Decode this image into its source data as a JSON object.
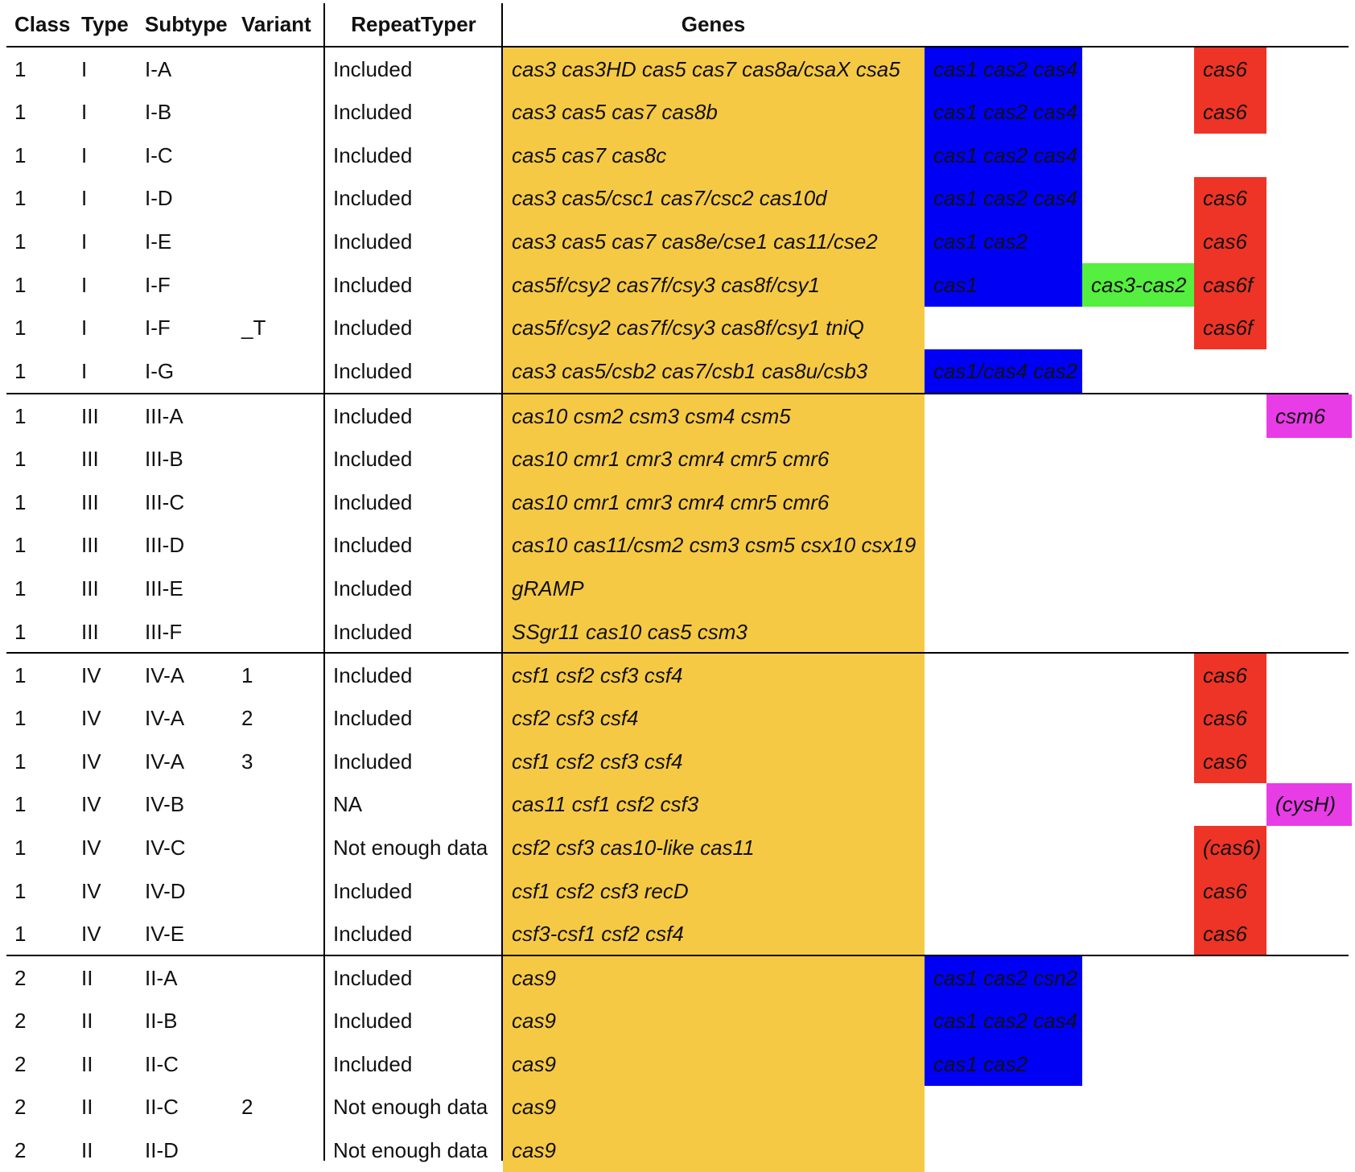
{
  "headers": {
    "class": "Class",
    "type": "Type",
    "subtype": "Subtype",
    "variant": "Variant",
    "repeat_typer": "RepeatTyper",
    "genes": "Genes"
  },
  "colors": {
    "core_genes": "#f6c945",
    "adaptation_genes": "#0000f5",
    "fusion_gene": "#55ef3f",
    "cas6_genes": "#ee3426",
    "accessory_genes": "#e83ce6"
  },
  "rows": [
    {
      "class": "1",
      "type": "I",
      "subtype": "I-A",
      "variant": "",
      "repeat_typer": "Included",
      "core": "cas3 cas3HD cas5 cas7 cas8a/csaX csa5",
      "adaptation": "cas1 cas2 cas4",
      "fusion": "",
      "cas6": "cas6",
      "accessory": ""
    },
    {
      "class": "1",
      "type": "I",
      "subtype": "I-B",
      "variant": "",
      "repeat_typer": "Included",
      "core": "cas3 cas5 cas7 cas8b",
      "adaptation": "cas1 cas2 cas4",
      "fusion": "",
      "cas6": "cas6",
      "accessory": ""
    },
    {
      "class": "1",
      "type": "I",
      "subtype": "I-C",
      "variant": "",
      "repeat_typer": "Included",
      "core": "cas5 cas7 cas8c",
      "adaptation": "cas1 cas2 cas4",
      "fusion": "",
      "cas6": "",
      "accessory": ""
    },
    {
      "class": "1",
      "type": "I",
      "subtype": "I-D",
      "variant": "",
      "repeat_typer": "Included",
      "core": "cas3 cas5/csc1 cas7/csc2 cas10d",
      "adaptation": "cas1 cas2 cas4",
      "fusion": "",
      "cas6": "cas6",
      "accessory": ""
    },
    {
      "class": "1",
      "type": "I",
      "subtype": "I-E",
      "variant": "",
      "repeat_typer": "Included",
      "core": "cas3 cas5 cas7 cas8e/cse1 cas11/cse2",
      "adaptation": "cas1 cas2",
      "fusion": "",
      "cas6": "cas6",
      "accessory": ""
    },
    {
      "class": "1",
      "type": "I",
      "subtype": "I-F",
      "variant": "",
      "repeat_typer": "Included",
      "core": "cas5f/csy2 cas7f/csy3 cas8f/csy1",
      "adaptation": "cas1",
      "fusion": "cas3-cas2",
      "cas6": "cas6f",
      "accessory": ""
    },
    {
      "class": "1",
      "type": "I",
      "subtype": "I-F",
      "variant": "_T",
      "repeat_typer": "Included",
      "core": "cas5f/csy2 cas7f/csy3 cas8f/csy1 tniQ",
      "adaptation": "",
      "fusion": "",
      "cas6": "cas6f",
      "accessory": ""
    },
    {
      "class": "1",
      "type": "I",
      "subtype": "I-G",
      "variant": "",
      "repeat_typer": "Included",
      "core": "cas3 cas5/csb2 cas7/csb1 cas8u/csb3",
      "adaptation": "cas1/cas4 cas2",
      "fusion": "",
      "cas6": "",
      "accessory": ""
    },
    {
      "class": "1",
      "type": "III",
      "subtype": "III-A",
      "variant": "",
      "repeat_typer": "Included",
      "core": "cas10 csm2 csm3 csm4 csm5",
      "adaptation": "",
      "fusion": "",
      "cas6": "",
      "accessory": "csm6"
    },
    {
      "class": "1",
      "type": "III",
      "subtype": "III-B",
      "variant": "",
      "repeat_typer": "Included",
      "core": "cas10 cmr1 cmr3 cmr4 cmr5 cmr6",
      "adaptation": "",
      "fusion": "",
      "cas6": "",
      "accessory": ""
    },
    {
      "class": "1",
      "type": "III",
      "subtype": "III-C",
      "variant": "",
      "repeat_typer": "Included",
      "core": "cas10 cmr1 cmr3 cmr4 cmr5 cmr6",
      "adaptation": "",
      "fusion": "",
      "cas6": "",
      "accessory": ""
    },
    {
      "class": "1",
      "type": "III",
      "subtype": "III-D",
      "variant": "",
      "repeat_typer": "Included",
      "core": "cas10 cas11/csm2 csm3 csm5 csx10 csx19",
      "adaptation": "",
      "fusion": "",
      "cas6": "",
      "accessory": ""
    },
    {
      "class": "1",
      "type": "III",
      "subtype": "III-E",
      "variant": "",
      "repeat_typer": "Included",
      "core": "gRAMP",
      "adaptation": "",
      "fusion": "",
      "cas6": "",
      "accessory": ""
    },
    {
      "class": "1",
      "type": "III",
      "subtype": "III-F",
      "variant": "",
      "repeat_typer": "Included",
      "core": "SSgr11 cas10 cas5 csm3",
      "adaptation": "",
      "fusion": "",
      "cas6": "",
      "accessory": ""
    },
    {
      "class": "1",
      "type": "IV",
      "subtype": "IV-A",
      "variant": "1",
      "repeat_typer": "Included",
      "core": "csf1 csf2 csf3 csf4",
      "adaptation": "",
      "fusion": "",
      "cas6": "cas6",
      "accessory": ""
    },
    {
      "class": "1",
      "type": "IV",
      "subtype": "IV-A",
      "variant": "2",
      "repeat_typer": "Included",
      "core": "csf2 csf3 csf4",
      "adaptation": "",
      "fusion": "",
      "cas6": "cas6",
      "accessory": ""
    },
    {
      "class": "1",
      "type": "IV",
      "subtype": "IV-A",
      "variant": "3",
      "repeat_typer": "Included",
      "core": "csf1 csf2 csf3 csf4",
      "adaptation": "",
      "fusion": "",
      "cas6": "cas6",
      "accessory": ""
    },
    {
      "class": "1",
      "type": "IV",
      "subtype": "IV-B",
      "variant": "",
      "repeat_typer": "NA",
      "core": "cas11 csf1 csf2 csf3",
      "adaptation": "",
      "fusion": "",
      "cas6": "",
      "accessory": "(cysH)"
    },
    {
      "class": "1",
      "type": "IV",
      "subtype": "IV-C",
      "variant": "",
      "repeat_typer": "Not enough data",
      "core": "csf2 csf3 cas10-like cas11",
      "adaptation": "",
      "fusion": "",
      "cas6": "(cas6)",
      "accessory": ""
    },
    {
      "class": "1",
      "type": "IV",
      "subtype": "IV-D",
      "variant": "",
      "repeat_typer": "Included",
      "core": "csf1 csf2 csf3 recD",
      "adaptation": "",
      "fusion": "",
      "cas6": "cas6",
      "accessory": ""
    },
    {
      "class": "1",
      "type": "IV",
      "subtype": "IV-E",
      "variant": "",
      "repeat_typer": "Included",
      "core": "csf3-csf1 csf2 csf4",
      "adaptation": "",
      "fusion": "",
      "cas6": "cas6",
      "accessory": ""
    },
    {
      "class": "2",
      "type": "II",
      "subtype": "II-A",
      "variant": "",
      "repeat_typer": "Included",
      "core": "cas9",
      "adaptation": "cas1 cas2 csn2",
      "fusion": "",
      "cas6": "",
      "accessory": ""
    },
    {
      "class": "2",
      "type": "II",
      "subtype": "II-B",
      "variant": "",
      "repeat_typer": "Included",
      "core": "cas9",
      "adaptation": "cas1 cas2 cas4",
      "fusion": "",
      "cas6": "",
      "accessory": ""
    },
    {
      "class": "2",
      "type": "II",
      "subtype": "II-C",
      "variant": "",
      "repeat_typer": "Included",
      "core": "cas9",
      "adaptation": "cas1 cas2",
      "fusion": "",
      "cas6": "",
      "accessory": ""
    },
    {
      "class": "2",
      "type": "II",
      "subtype": "II-C",
      "variant": "2",
      "repeat_typer": "Not enough data",
      "core": "cas9",
      "adaptation": "",
      "fusion": "",
      "cas6": "",
      "accessory": ""
    },
    {
      "class": "2",
      "type": "II",
      "subtype": "II-D",
      "variant": "",
      "repeat_typer": "Not enough data",
      "core": "cas9",
      "adaptation": "",
      "fusion": "",
      "cas6": "",
      "accessory": ""
    }
  ]
}
